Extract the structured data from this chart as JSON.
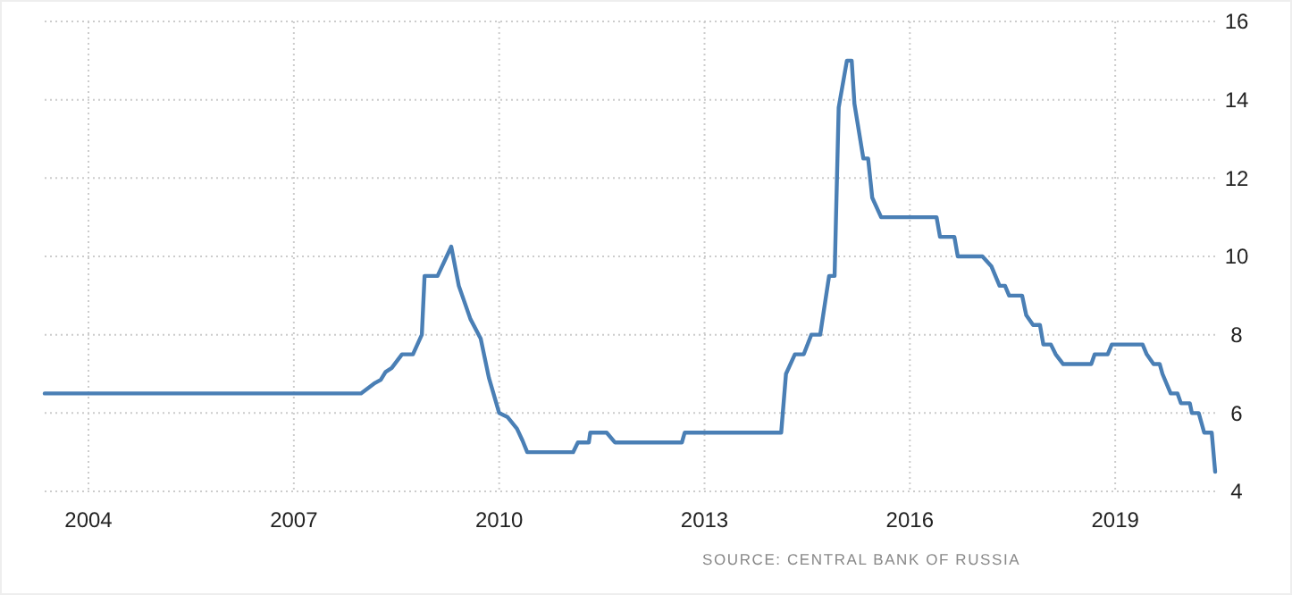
{
  "chart_data": {
    "type": "line",
    "x": [
      2003.36,
      2007.98,
      2008.17,
      2008.27,
      2008.34,
      2008.43,
      2008.58,
      2008.74,
      2008.87,
      2008.91,
      2009.1,
      2009.3,
      2009.41,
      2009.58,
      2009.73,
      2009.85,
      2010.0,
      2010.12,
      2010.26,
      2010.34,
      2010.41,
      2011.08,
      2011.15,
      2011.31,
      2011.33,
      2011.57,
      2011.69,
      2012.67,
      2012.71,
      2014.12,
      2014.19,
      2014.32,
      2014.45,
      2014.56,
      2014.69,
      2014.82,
      2014.9,
      2014.96,
      2015.08,
      2015.15,
      2015.19,
      2015.32,
      2015.39,
      2015.45,
      2015.58,
      2016.39,
      2016.44,
      2016.65,
      2016.7,
      2017.06,
      2017.19,
      2017.31,
      2017.39,
      2017.45,
      2017.64,
      2017.7,
      2017.8,
      2017.9,
      2017.95,
      2018.06,
      2018.13,
      2018.24,
      2018.65,
      2018.7,
      2018.89,
      2018.95,
      2019.4,
      2019.46,
      2019.56,
      2019.65,
      2019.69,
      2019.81,
      2019.91,
      2019.96,
      2020.09,
      2020.12,
      2020.22,
      2020.3,
      2020.41,
      2020.46
    ],
    "series": [
      {
        "color": "#4a7fb5",
        "values": [
          6.5,
          6.5,
          6.75,
          6.85,
          7.05,
          7.15,
          7.5,
          7.5,
          8,
          9.5,
          9.5,
          10.25,
          9.25,
          8.4,
          7.9,
          6.9,
          6,
          5.9,
          5.6,
          5.3,
          5,
          5,
          5.25,
          5.25,
          5.5,
          5.5,
          5.25,
          5.25,
          5.5,
          5.5,
          7,
          7.5,
          7.5,
          8,
          8,
          9.5,
          9.5,
          13.8,
          15,
          15,
          13.9,
          12.5,
          12.5,
          11.5,
          11,
          11,
          10.5,
          10.5,
          10,
          10,
          9.75,
          9.25,
          9.25,
          9,
          9,
          8.5,
          8.25,
          8.25,
          7.75,
          7.75,
          7.5,
          7.25,
          7.25,
          7.5,
          7.5,
          7.75,
          7.75,
          7.5,
          7.25,
          7.25,
          7,
          6.5,
          6.5,
          6.25,
          6.25,
          6,
          6,
          5.5,
          5.5,
          4.5
        ]
      }
    ],
    "xlim": [
      2003.36,
      2020.46
    ],
    "xticks": [
      2004,
      2007,
      2010,
      2013,
      2016,
      2019
    ],
    "ylim": [
      4,
      16
    ],
    "yticks": [
      4,
      6,
      8,
      10,
      12,
      14,
      16
    ],
    "grid": true,
    "annotations": [
      "SOURCE: CENTRAL BANK OF RUSSIA"
    ]
  }
}
